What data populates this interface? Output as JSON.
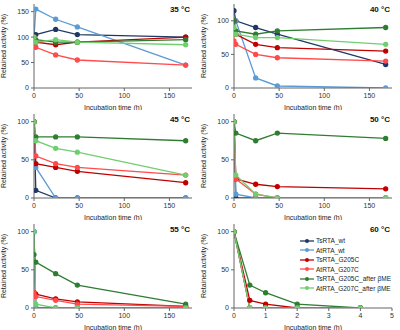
{
  "chart_data": [
    {
      "type": "line",
      "title": "35 °C",
      "x_label": "Incubation time (h)",
      "y_label": "Retained activity (%)",
      "marker": "circle",
      "x": [
        0,
        2,
        24,
        48,
        168
      ],
      "xlim": [
        0,
        175
      ],
      "xticks": [
        0,
        50,
        100,
        150
      ],
      "ylim": [
        0,
        165
      ],
      "yticks": [
        0,
        50,
        100,
        150
      ],
      "series": [
        {
          "name": "TsRTA_wt",
          "color": "#1f3864",
          "values": [
            100,
            105,
            115,
            105,
            100
          ]
        },
        {
          "name": "AtRTA_wt",
          "color": "#5b9bd5",
          "values": [
            100,
            155,
            135,
            120,
            45
          ]
        },
        {
          "name": "TsRTA_G205C",
          "color": "#c00000",
          "values": [
            100,
            90,
            85,
            90,
            100
          ]
        },
        {
          "name": "AtRTA_G207C",
          "color": "#ff4b4b",
          "values": [
            100,
            80,
            65,
            55,
            45
          ]
        },
        {
          "name": "TsRTA_G205C_after βME",
          "color": "#2e7d32",
          "values": [
            100,
            95,
            90,
            90,
            95
          ]
        },
        {
          "name": "AtRTA_G207C_after βME",
          "color": "#6fcf6f",
          "values": [
            100,
            90,
            95,
            90,
            85
          ]
        }
      ]
    },
    {
      "type": "line",
      "title": "40 °C",
      "x_label": "Incubation time (h)",
      "y_label": "Retained activity (%)",
      "marker": "circle",
      "x": [
        0,
        2,
        24,
        48,
        168
      ],
      "xlim": [
        0,
        175
      ],
      "xticks": [
        0,
        50,
        100,
        150
      ],
      "ylim": [
        0,
        125
      ],
      "yticks": [
        0,
        50,
        100
      ],
      "series": [
        {
          "name": "TsRTA_wt",
          "color": "#1f3864",
          "values": [
            115,
            100,
            90,
            80,
            35
          ]
        },
        {
          "name": "AtRTA_wt",
          "color": "#5b9bd5",
          "values": [
            100,
            100,
            15,
            3,
            0
          ]
        },
        {
          "name": "TsRTA_G205C",
          "color": "#c00000",
          "values": [
            100,
            80,
            65,
            60,
            55
          ]
        },
        {
          "name": "AtRTA_G207C",
          "color": "#ff4b4b",
          "values": [
            70,
            65,
            50,
            45,
            40
          ]
        },
        {
          "name": "TsRTA_G205C_after βME",
          "color": "#2e7d32",
          "values": [
            100,
            85,
            80,
            85,
            90
          ]
        },
        {
          "name": "AtRTA_G207C_after βME",
          "color": "#6fcf6f",
          "values": [
            90,
            80,
            75,
            75,
            65
          ]
        }
      ]
    },
    {
      "type": "line",
      "title": "45 °C",
      "x_label": "Incubation time (h)",
      "y_label": "Retained activity (%)",
      "marker": "circle",
      "x": [
        0,
        2,
        24,
        48,
        168
      ],
      "xlim": [
        0,
        175
      ],
      "xticks": [
        0,
        50,
        100,
        150
      ],
      "ylim": [
        0,
        110
      ],
      "yticks": [
        0,
        50,
        100
      ],
      "series": [
        {
          "name": "TsRTA_wt",
          "color": "#1f3864",
          "values": [
            100,
            10,
            0,
            0,
            0
          ]
        },
        {
          "name": "AtRTA_wt",
          "color": "#5b9bd5",
          "values": [
            100,
            40,
            0,
            0,
            0
          ]
        },
        {
          "name": "TsRTA_G205C",
          "color": "#c00000",
          "values": [
            100,
            45,
            40,
            35,
            20
          ]
        },
        {
          "name": "AtRTA_G207C",
          "color": "#ff4b4b",
          "values": [
            100,
            55,
            45,
            40,
            30
          ]
        },
        {
          "name": "TsRTA_G205C_after βME",
          "color": "#2e7d32",
          "values": [
            100,
            80,
            80,
            80,
            75
          ]
        },
        {
          "name": "AtRTA_G207C_after βME",
          "color": "#6fcf6f",
          "values": [
            100,
            75,
            65,
            60,
            30
          ]
        }
      ]
    },
    {
      "type": "line",
      "title": "50 °C",
      "x_label": "Incubation time (h)",
      "y_label": "Retained activity (%)",
      "marker": "circle",
      "x": [
        0,
        2,
        24,
        48,
        168
      ],
      "xlim": [
        0,
        175
      ],
      "xticks": [
        0,
        50,
        100,
        150
      ],
      "ylim": [
        0,
        110
      ],
      "yticks": [
        0,
        50,
        100
      ],
      "series": [
        {
          "name": "TsRTA_wt",
          "color": "#1f3864",
          "values": [
            100,
            0,
            0,
            0,
            0
          ]
        },
        {
          "name": "AtRTA_wt",
          "color": "#5b9bd5",
          "values": [
            100,
            5,
            0,
            0,
            0
          ]
        },
        {
          "name": "TsRTA_G205C",
          "color": "#c00000",
          "values": [
            100,
            25,
            18,
            15,
            12
          ]
        },
        {
          "name": "AtRTA_G207C",
          "color": "#ff4b4b",
          "values": [
            100,
            25,
            5,
            0,
            0
          ]
        },
        {
          "name": "TsRTA_G205C_after βME",
          "color": "#2e7d32",
          "values": [
            100,
            85,
            75,
            85,
            78
          ]
        },
        {
          "name": "AtRTA_G207C_after βME",
          "color": "#6fcf6f",
          "values": [
            100,
            30,
            5,
            0,
            0
          ]
        }
      ]
    },
    {
      "type": "line",
      "title": "55 °C",
      "x_label": "Incubation time (h)",
      "y_label": "Retained activity (%)",
      "marker": "circle",
      "x": [
        0,
        2,
        24,
        48,
        168
      ],
      "xlim": [
        0,
        175
      ],
      "xticks": [
        0,
        50,
        100,
        150
      ],
      "ylim": [
        0,
        110
      ],
      "yticks": [
        0,
        50,
        100
      ],
      "series": [
        {
          "name": "TsRTA_wt",
          "color": "#1f3864",
          "values": [
            100,
            0,
            0,
            0,
            0
          ]
        },
        {
          "name": "AtRTA_wt",
          "color": "#5b9bd5",
          "values": [
            100,
            0,
            0,
            0,
            0
          ]
        },
        {
          "name": "TsRTA_G205C",
          "color": "#c00000",
          "values": [
            20,
            18,
            12,
            8,
            2
          ]
        },
        {
          "name": "AtRTA_G207C",
          "color": "#ff4b4b",
          "values": [
            20,
            15,
            10,
            5,
            2
          ]
        },
        {
          "name": "TsRTA_G205C_after βME",
          "color": "#2e7d32",
          "values": [
            70,
            60,
            45,
            30,
            5
          ]
        },
        {
          "name": "AtRTA_G207C_after βME",
          "color": "#6fcf6f",
          "values": [
            100,
            5,
            0,
            0,
            0
          ]
        }
      ]
    },
    {
      "type": "line",
      "title": "60 °C",
      "x_label": "Incubation time (h)",
      "y_label": "Retained activity (%)",
      "marker": "circle",
      "legend": "right",
      "x": [
        0,
        0.5,
        1,
        2,
        4
      ],
      "xlim": [
        0,
        5
      ],
      "xticks": [
        0,
        1,
        2,
        3,
        4,
        5
      ],
      "ylim": [
        0,
        110
      ],
      "yticks": [
        0,
        50,
        100
      ],
      "series": [
        {
          "name": "TsRTA_wt",
          "color": "#1f3864",
          "values": [
            100,
            0,
            0,
            0,
            0
          ]
        },
        {
          "name": "AtRTA_wt",
          "color": "#5b9bd5",
          "values": [
            100,
            0,
            0,
            0,
            0
          ]
        },
        {
          "name": "TsRTA_G205C",
          "color": "#c00000",
          "values": [
            100,
            10,
            5,
            0,
            0
          ]
        },
        {
          "name": "AtRTA_G207C",
          "color": "#ff4b4b",
          "values": [
            100,
            0,
            0,
            0,
            0
          ]
        },
        {
          "name": "TsRTA_G205C_after βME",
          "color": "#2e7d32",
          "values": [
            100,
            30,
            20,
            5,
            0
          ]
        },
        {
          "name": "AtRTA_G207C_after βME",
          "color": "#6fcf6f",
          "values": [
            100,
            0,
            0,
            0,
            0
          ]
        }
      ]
    }
  ]
}
